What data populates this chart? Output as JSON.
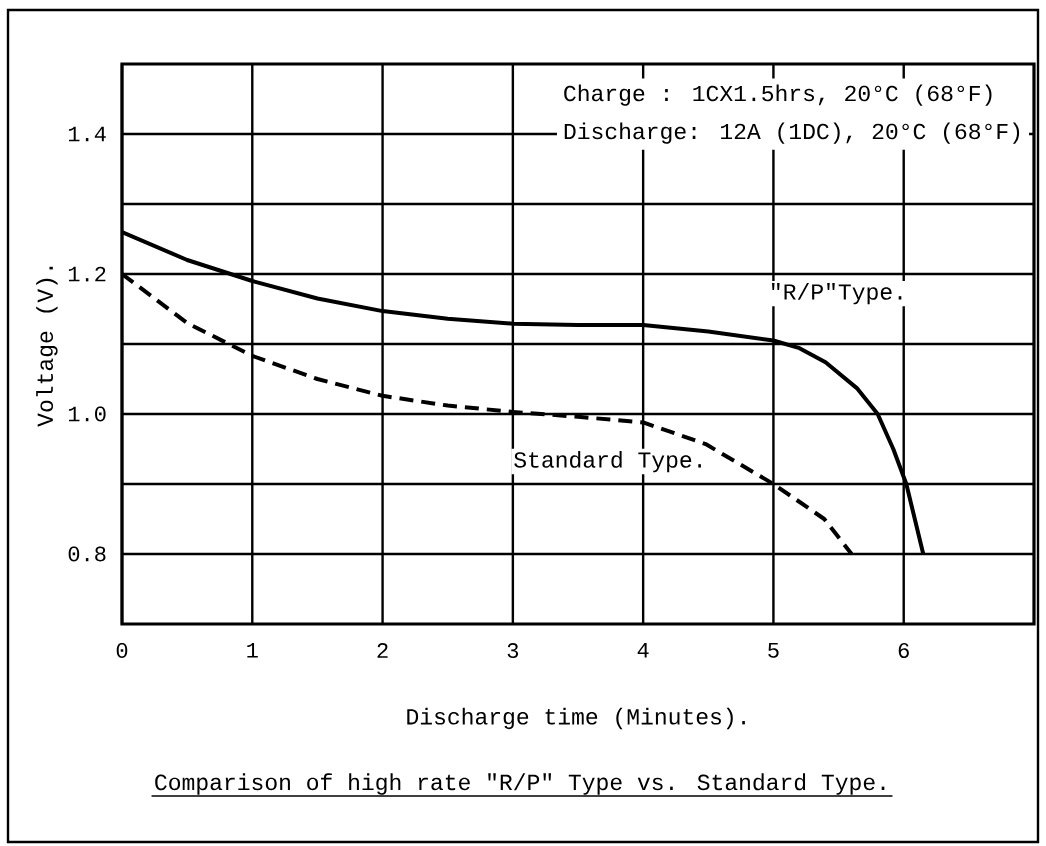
{
  "chart_data": {
    "type": "line",
    "title": "Comparison of high rate \"R/P\" Type vs. Standard Type.",
    "xlabel": "Discharge time (Minutes).",
    "ylabel": "Voltage (V).",
    "annotations": [
      "Charge : 1CX1.5hrs, 20°C (68°F)",
      "Discharge: 12A (1DC), 20°C (68°F)"
    ],
    "xlim": [
      0,
      7
    ],
    "ylim": [
      0.7,
      1.5
    ],
    "xticks": [
      0,
      1,
      2,
      3,
      4,
      5,
      6
    ],
    "yticks": [
      0.8,
      {
        "value": 0.9,
        "label": null
      },
      {
        "value": 1,
        "label": "1.0"
      },
      {
        "value": 1.1,
        "label": null
      },
      1.2,
      {
        "value": 1.3,
        "label": null
      },
      1.4
    ],
    "grid": true,
    "marker": "none",
    "series": [
      {
        "name": "\"R/P\"Type.",
        "color": "#000000",
        "line_style": "solid",
        "x": [
          0,
          0.5,
          1,
          1.5,
          2,
          2.5,
          3,
          3.5,
          4,
          4.5,
          5,
          5.2,
          5.4,
          5.64,
          5.8,
          5.92,
          6.02,
          6.15
        ],
        "values": [
          1.26,
          1.22,
          1.19,
          1.165,
          1.147,
          1.136,
          1.129,
          1.127,
          1.127,
          1.118,
          1.105,
          1.094,
          1.074,
          1.037,
          1.0,
          0.95,
          0.9,
          0.8
        ]
      },
      {
        "name": "Standard Type.",
        "color": "#000000",
        "line_style": "dashed",
        "x": [
          0,
          0.5,
          1,
          1.5,
          2,
          2.5,
          3,
          3.5,
          4,
          4.48,
          5,
          5.39,
          5.6
        ],
        "values": [
          1.2,
          1.13,
          1.083,
          1.05,
          1.026,
          1.012,
          1.003,
          0.996,
          0.988,
          0.957,
          0.9,
          0.85,
          0.8
        ]
      }
    ]
  }
}
